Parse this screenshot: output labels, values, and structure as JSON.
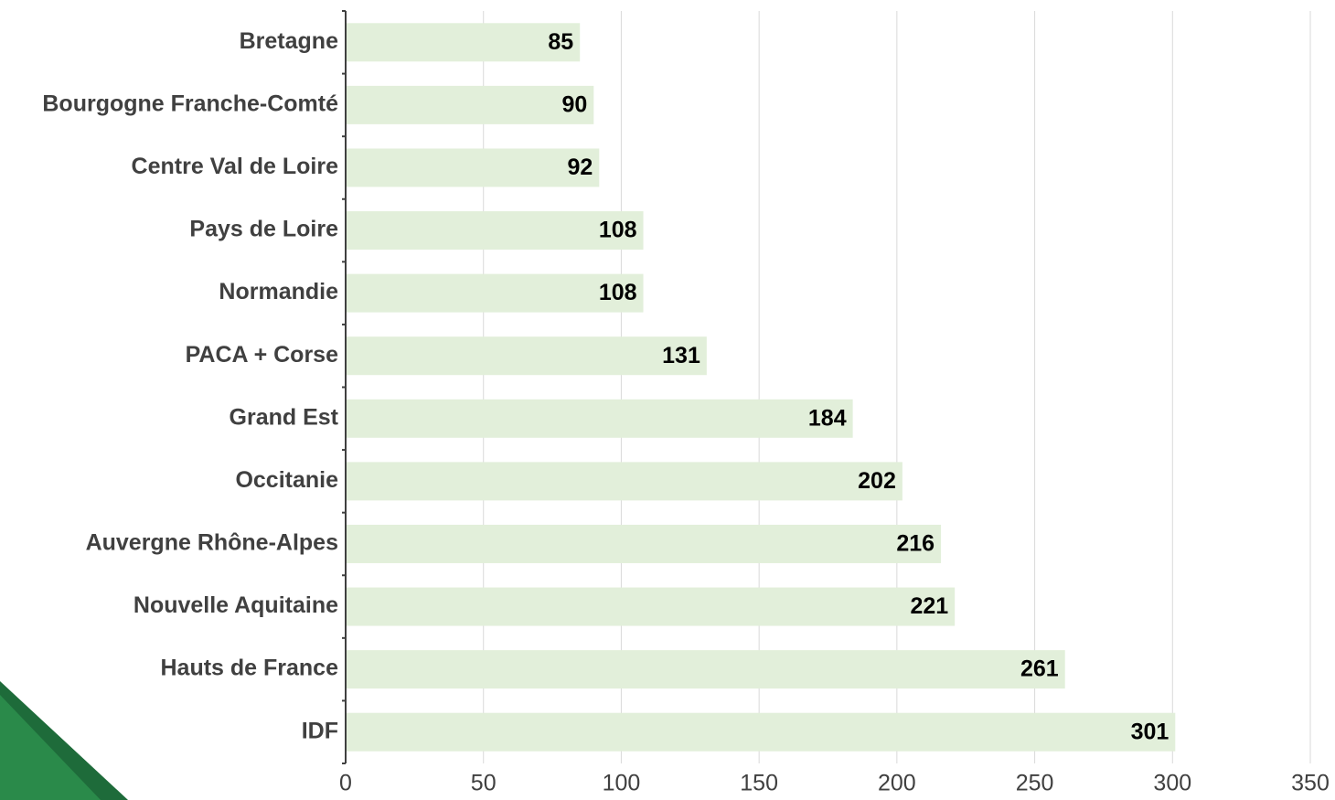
{
  "chart_data": {
    "type": "hbar",
    "categories": [
      "Bretagne",
      "Bourgogne Franche-Comté",
      "Centre Val de Loire",
      "Pays de Loire",
      "Normandie",
      "PACA + Corse",
      "Grand Est",
      "Occitanie",
      "Auvergne Rhône-Alpes",
      "Nouvelle Aquitaine",
      "Hauts de France",
      "IDF"
    ],
    "values": [
      85,
      90,
      92,
      108,
      108,
      131,
      184,
      202,
      216,
      221,
      261,
      301
    ],
    "color": "#e2efda",
    "xlim": [
      0,
      350
    ],
    "xticks": [
      0,
      50,
      100,
      150,
      200,
      250,
      300,
      350
    ],
    "grid": true
  }
}
